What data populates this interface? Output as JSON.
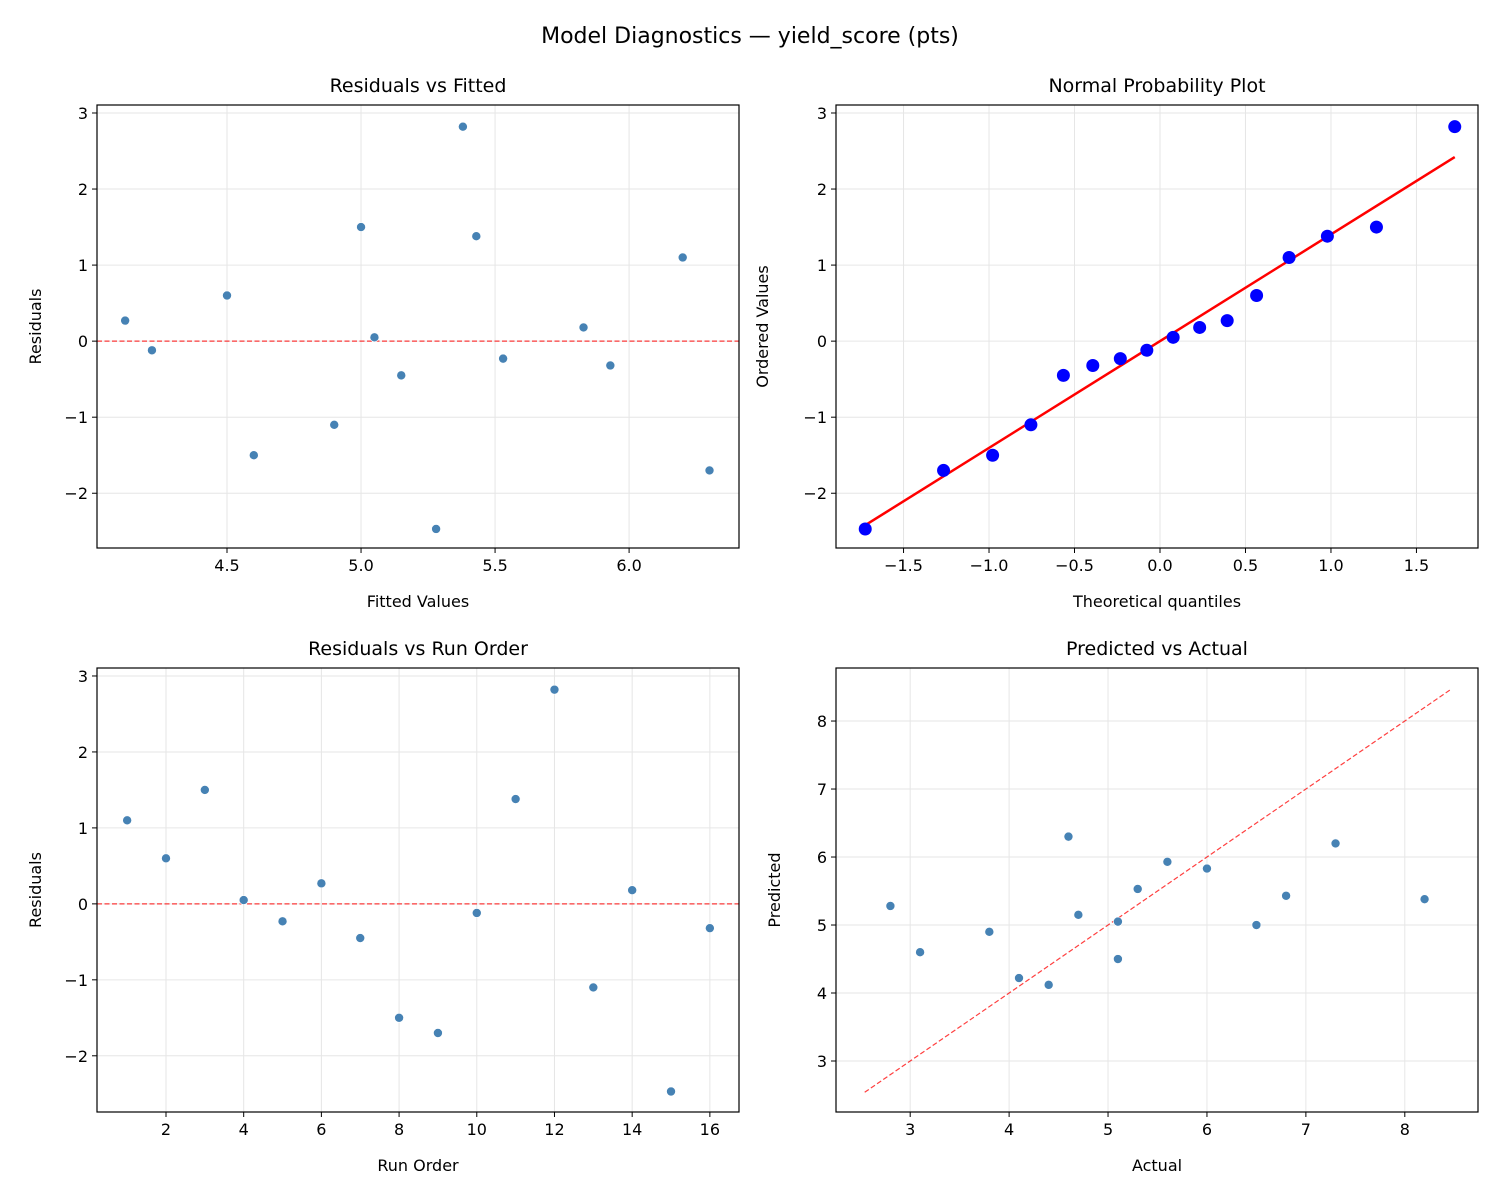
{
  "suptitle": "Model Diagnostics — yield_score (pts)",
  "colors": {
    "points": "#4682b4",
    "qq_points": "#0000ff",
    "reference": "#ff0000",
    "grid": "#e6e6e6"
  },
  "chart_data": [
    {
      "type": "scatter",
      "title": "Residuals vs Fitted",
      "xlabel": "Fitted Values",
      "ylabel": "Residuals",
      "xlim": [
        4.015,
        6.41
      ],
      "ylim": [
        -2.72,
        3.105
      ],
      "xticks": [
        4.5,
        5.0,
        5.5,
        6.0
      ],
      "xtick_labels": [
        "4.5",
        "5.0",
        "5.5",
        "6.0"
      ],
      "yticks": [
        -2,
        -1,
        0,
        1,
        2,
        3
      ],
      "ytick_labels": [
        "−2",
        "−1",
        "0",
        "1",
        "2",
        "3"
      ],
      "grid": true,
      "reference_line": {
        "type": "horizontal",
        "y": 0,
        "style": "dashed"
      },
      "x": [
        6.2,
        4.5,
        5.0,
        5.05,
        5.53,
        4.12,
        5.15,
        4.6,
        6.3,
        4.22,
        5.43,
        5.38,
        4.9,
        5.83,
        5.28,
        5.93
      ],
      "y": [
        1.1,
        0.6,
        1.5,
        0.05,
        -0.23,
        0.27,
        -0.45,
        -1.5,
        -1.7,
        -0.12,
        1.38,
        2.82,
        -1.1,
        0.18,
        -2.47,
        -0.32
      ]
    },
    {
      "type": "scatter",
      "title": "Normal Probability Plot",
      "xlabel": "Theoretical quantiles",
      "ylabel": "Ordered Values",
      "xlim": [
        -1.895,
        1.86
      ],
      "ylim": [
        -2.72,
        3.105
      ],
      "xticks": [
        -1.5,
        -1.0,
        -0.5,
        0.0,
        0.5,
        1.0,
        1.5
      ],
      "xtick_labels": [
        "−1.5",
        "−1.0",
        "−0.5",
        "0.0",
        "0.5",
        "1.0",
        "1.5"
      ],
      "yticks": [
        -2,
        -1,
        0,
        1,
        2,
        3
      ],
      "ytick_labels": [
        "−2",
        "−1",
        "0",
        "1",
        "2",
        "3"
      ],
      "grid": true,
      "reference_line": {
        "type": "fit",
        "x": [
          -1.724,
          1.724
        ],
        "y": [
          -2.42,
          2.42
        ],
        "style": "solid"
      },
      "x": [
        -1.724,
        -1.266,
        -0.979,
        -0.755,
        -0.565,
        -0.393,
        -0.232,
        -0.077,
        0.077,
        0.232,
        0.393,
        0.565,
        0.755,
        0.979,
        1.266,
        1.724
      ],
      "y": [
        -2.47,
        -1.7,
        -1.5,
        -1.1,
        -0.45,
        -0.32,
        -0.23,
        -0.12,
        0.05,
        0.18,
        0.27,
        0.6,
        1.1,
        1.38,
        1.5,
        2.82
      ]
    },
    {
      "type": "scatter",
      "title": "Residuals vs Run Order",
      "xlabel": "Run Order",
      "ylabel": "Residuals",
      "xlim": [
        0.224,
        16.75
      ],
      "ylim": [
        -2.74,
        3.105
      ],
      "xticks": [
        2,
        4,
        6,
        8,
        10,
        12,
        14,
        16
      ],
      "xtick_labels": [
        "2",
        "4",
        "6",
        "8",
        "10",
        "12",
        "14",
        "16"
      ],
      "yticks": [
        -2,
        -1,
        0,
        1,
        2,
        3
      ],
      "ytick_labels": [
        "−2",
        "−1",
        "0",
        "1",
        "2",
        "3"
      ],
      "grid": true,
      "reference_line": {
        "type": "horizontal",
        "y": 0,
        "style": "dashed"
      },
      "x": [
        1,
        2,
        3,
        4,
        5,
        6,
        7,
        8,
        9,
        10,
        11,
        12,
        13,
        14,
        15,
        16
      ],
      "y": [
        1.1,
        0.6,
        1.5,
        0.05,
        -0.23,
        0.27,
        -0.45,
        -1.5,
        -1.7,
        -0.12,
        1.38,
        2.82,
        -1.1,
        0.18,
        -2.47,
        -0.32
      ]
    },
    {
      "type": "scatter",
      "title": "Predicted vs Actual",
      "xlabel": "Actual",
      "ylabel": "Predicted",
      "xlim": [
        2.25,
        8.74
      ],
      "ylim": [
        2.25,
        8.78
      ],
      "xticks": [
        3,
        4,
        5,
        6,
        7,
        8
      ],
      "xtick_labels": [
        "3",
        "4",
        "5",
        "6",
        "7",
        "8"
      ],
      "yticks": [
        3,
        4,
        5,
        6,
        7,
        8
      ],
      "ytick_labels": [
        "3",
        "4",
        "5",
        "6",
        "7",
        "8"
      ],
      "grid": true,
      "reference_line": {
        "type": "identity",
        "x": [
          2.54,
          8.46
        ],
        "y": [
          2.54,
          8.46
        ],
        "style": "dashed"
      },
      "x": [
        7.3,
        5.1,
        6.5,
        5.1,
        5.3,
        4.4,
        4.7,
        3.1,
        4.6,
        4.1,
        6.8,
        8.2,
        3.8,
        6.0,
        2.8,
        5.6
      ],
      "y": [
        6.2,
        4.5,
        5.0,
        5.05,
        5.53,
        4.12,
        5.15,
        4.6,
        6.3,
        4.22,
        5.43,
        5.38,
        4.9,
        5.83,
        5.28,
        5.93
      ]
    }
  ]
}
